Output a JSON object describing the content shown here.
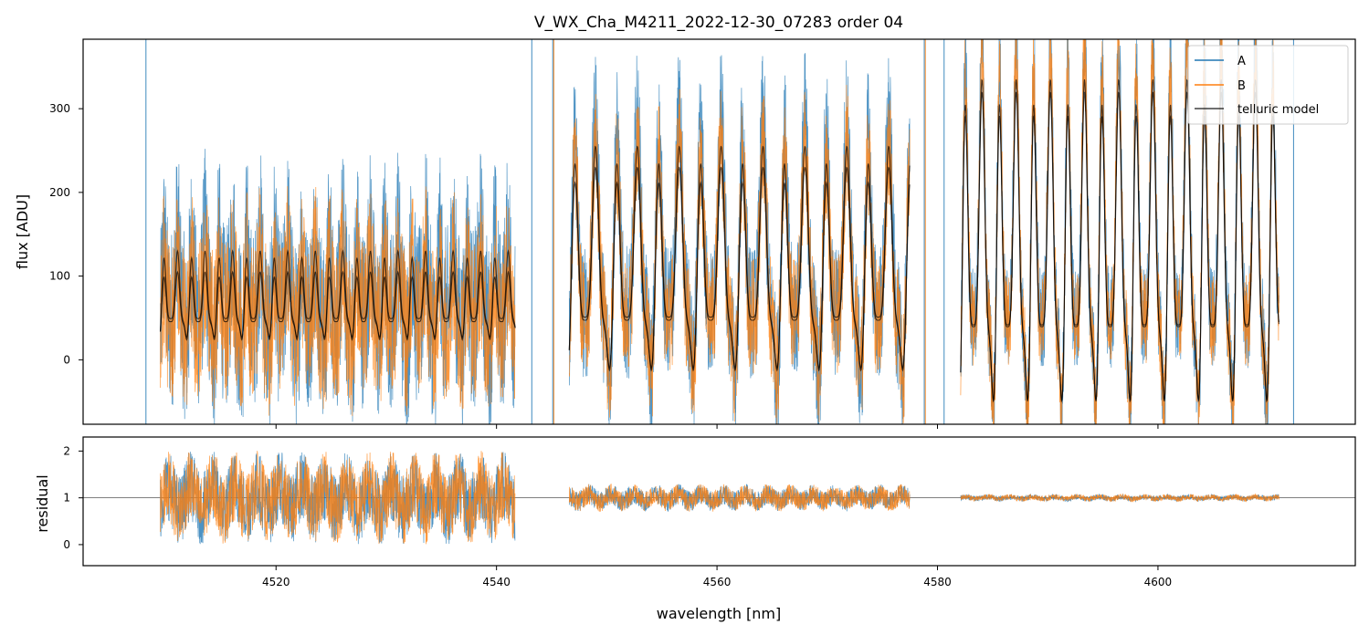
{
  "chart_data": {
    "type": "line",
    "title": "V_WX_Cha_M4211_2022-12-30_07283  order 04",
    "xlabel": "wavelength [nm]",
    "xlim": [
      4502.5,
      4617.9
    ],
    "xticks": [
      4520,
      4540,
      4560,
      4580,
      4600
    ],
    "xtick_labels": [
      "4520",
      "4540",
      "4560",
      "4580",
      "4600"
    ],
    "legend": {
      "position": "top-right",
      "entries": [
        {
          "label": "A",
          "color": "#1f77b4"
        },
        {
          "label": "B",
          "color": "#ff7f0e"
        },
        {
          "label": "telluric model",
          "color": "#000000"
        }
      ]
    },
    "flux_panel": {
      "ylabel": "flux [ADU]",
      "ylim": [
        -77,
        383
      ],
      "yticks": [
        0,
        100,
        200,
        300
      ],
      "ytick_labels": [
        "0",
        "100",
        "200",
        "300"
      ],
      "segments": [
        {
          "x0": 4509.5,
          "x1": 4541.7,
          "base": 35,
          "amp_model_a": 95,
          "amp_model_b": 70,
          "period": 1.25,
          "noise_a": 110,
          "noise_b": 95
        },
        {
          "x0": 4546.6,
          "x1": 4577.5,
          "base": 15,
          "amp_model_a": 240,
          "amp_model_b": 215,
          "period": 1.9,
          "noise_a": 80,
          "noise_b": 70
        },
        {
          "x0": 4582.1,
          "x1": 4611.0,
          "base": -10,
          "amp_model_a": 345,
          "amp_model_b": 330,
          "period": 1.55,
          "noise_a": 60,
          "noise_b": 55
        }
      ],
      "spikes_a": [
        4508.2,
        4543.2,
        4545.1,
        4578.8,
        4580.6,
        4612.3
      ],
      "spikes_b": [
        4545.2,
        4578.9
      ]
    },
    "residual_panel": {
      "ylabel": "residual",
      "ylim": [
        -0.45,
        2.3
      ],
      "yticks": [
        0,
        1,
        2
      ],
      "ytick_labels": [
        "0",
        "1",
        "2"
      ],
      "reference_line": 1,
      "segments": [
        {
          "x0": 4509.5,
          "x1": 4541.7,
          "spread": 0.75
        },
        {
          "x0": 4546.6,
          "x1": 4577.5,
          "spread": 0.22
        },
        {
          "x0": 4582.1,
          "x1": 4611.0,
          "spread": 0.06
        }
      ]
    }
  }
}
